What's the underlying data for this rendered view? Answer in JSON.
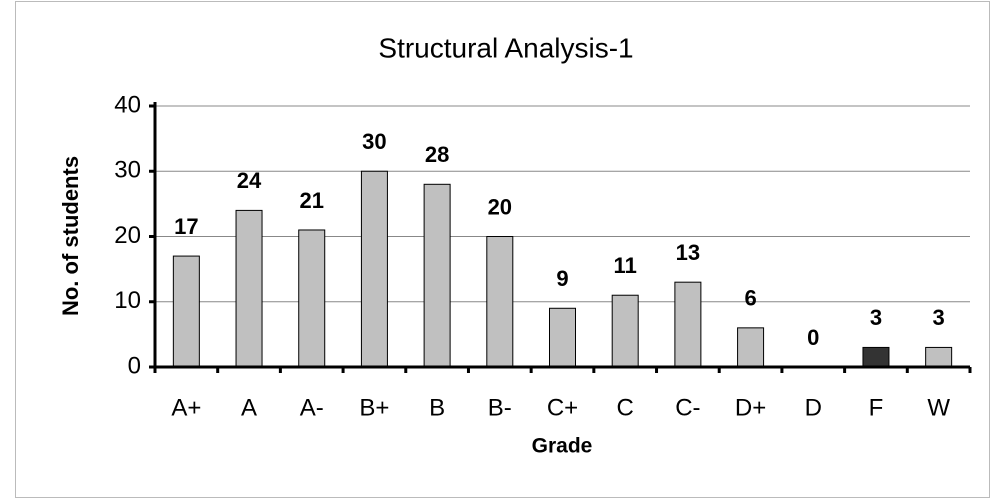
{
  "chart_data": {
    "type": "bar",
    "title": "Structural Analysis-1",
    "x_label": "Grade",
    "y_label": "No. of students",
    "categories": [
      "A+",
      "A",
      "A-",
      "B+",
      "B",
      "B-",
      "C+",
      "C",
      "C-",
      "D+",
      "D",
      "F",
      "W"
    ],
    "values": [
      17,
      24,
      21,
      30,
      28,
      20,
      9,
      11,
      13,
      6,
      0,
      3,
      3
    ],
    "colors": [
      "#c0c0c0",
      "#c0c0c0",
      "#c0c0c0",
      "#c0c0c0",
      "#c0c0c0",
      "#c0c0c0",
      "#c0c0c0",
      "#c0c0c0",
      "#c0c0c0",
      "#c0c0c0",
      "#c0c0c0",
      "#333333",
      "#c0c0c0"
    ],
    "ylim": [
      0,
      40
    ],
    "yticks": [
      0,
      10,
      20,
      30,
      40
    ],
    "grid": true
  }
}
